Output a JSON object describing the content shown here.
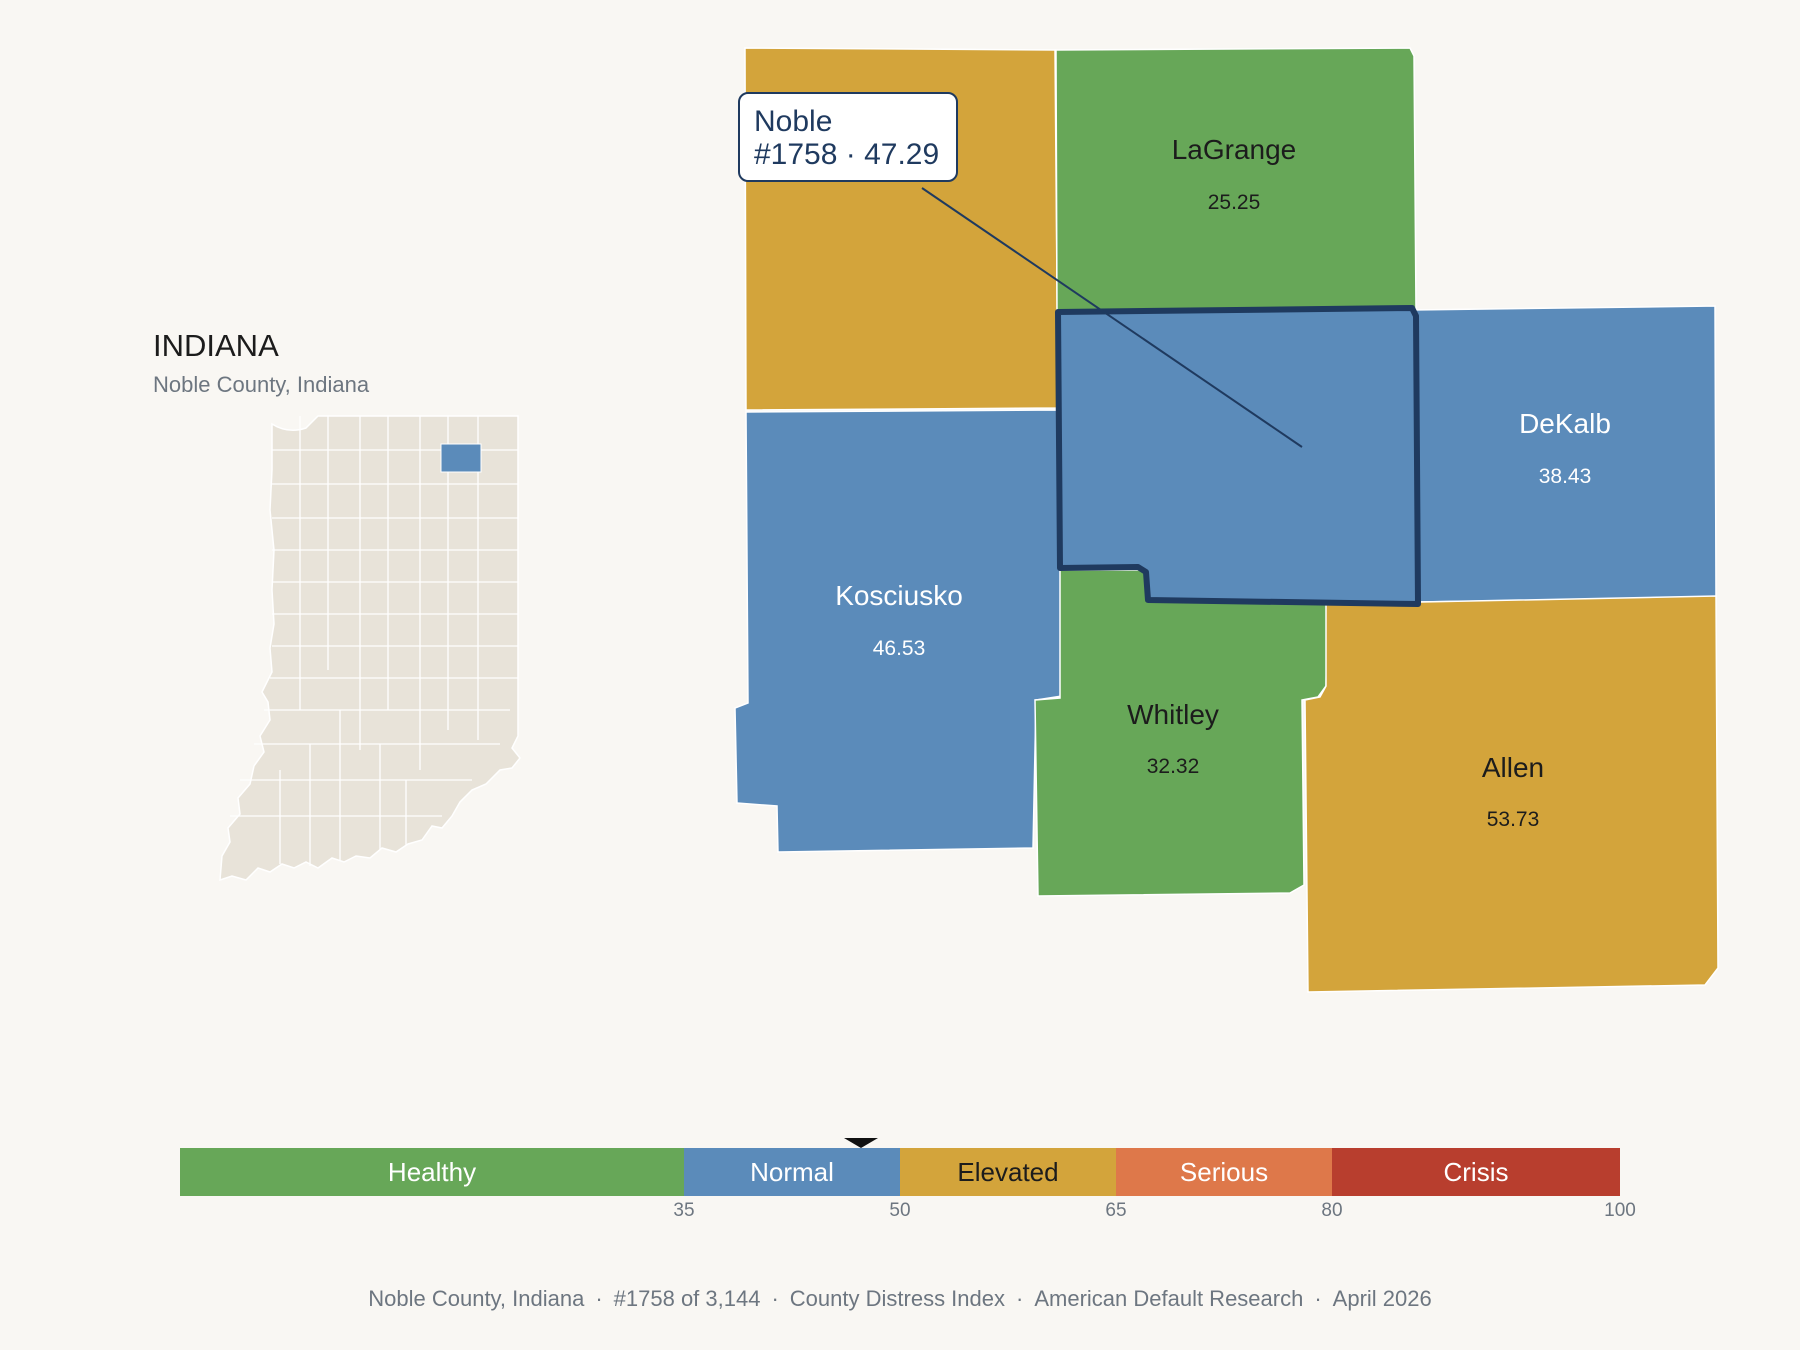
{
  "state": {
    "title": "INDIANA",
    "subtitle": "Noble County, Indiana"
  },
  "focus": {
    "name": "Noble",
    "line": "#1758 · 47.29",
    "rank": "#1758",
    "value": 47.29
  },
  "counties": [
    {
      "name": "LaGrange",
      "value": "25.25",
      "category": "Healthy"
    },
    {
      "name": "DeKalb",
      "value": "38.43",
      "category": "Normal"
    },
    {
      "name": "Kosciusko",
      "value": "46.53",
      "category": "Normal"
    },
    {
      "name": "Whitley",
      "value": "32.32",
      "category": "Healthy"
    },
    {
      "name": "Allen",
      "value": "53.73",
      "category": "Elevated"
    },
    {
      "name": "Noble",
      "value": "47.29",
      "category": "Normal"
    },
    {
      "name": "",
      "value": "",
      "category": "Elevated"
    }
  ],
  "scale": {
    "min": 0,
    "max": 100,
    "segments": [
      {
        "label": "Healthy",
        "from": 0,
        "to": 35,
        "color": "#67a758"
      },
      {
        "label": "Normal",
        "from": 35,
        "to": 50,
        "color": "#5b8bba"
      },
      {
        "label": "Elevated",
        "from": 50,
        "to": 65,
        "color": "#d3a43b"
      },
      {
        "label": "Serious",
        "from": 65,
        "to": 80,
        "color": "#de784a"
      },
      {
        "label": "Crisis",
        "from": 80,
        "to": 100,
        "color": "#b83e2e"
      }
    ],
    "ticks": [
      "35",
      "50",
      "65",
      "80",
      "100"
    ],
    "marker_value": 47.29
  },
  "footer": {
    "county": "Noble County, Indiana",
    "rank": "#1758 of 3,144",
    "index": "County Distress Index",
    "source": "American Default Research",
    "date": "April 2026"
  },
  "colors": {
    "background": "#f9f7f3",
    "focus_outline": "#1f3a5f",
    "locator_fill": "#e8e3d9",
    "locator_highlight": "#5b8bba"
  }
}
